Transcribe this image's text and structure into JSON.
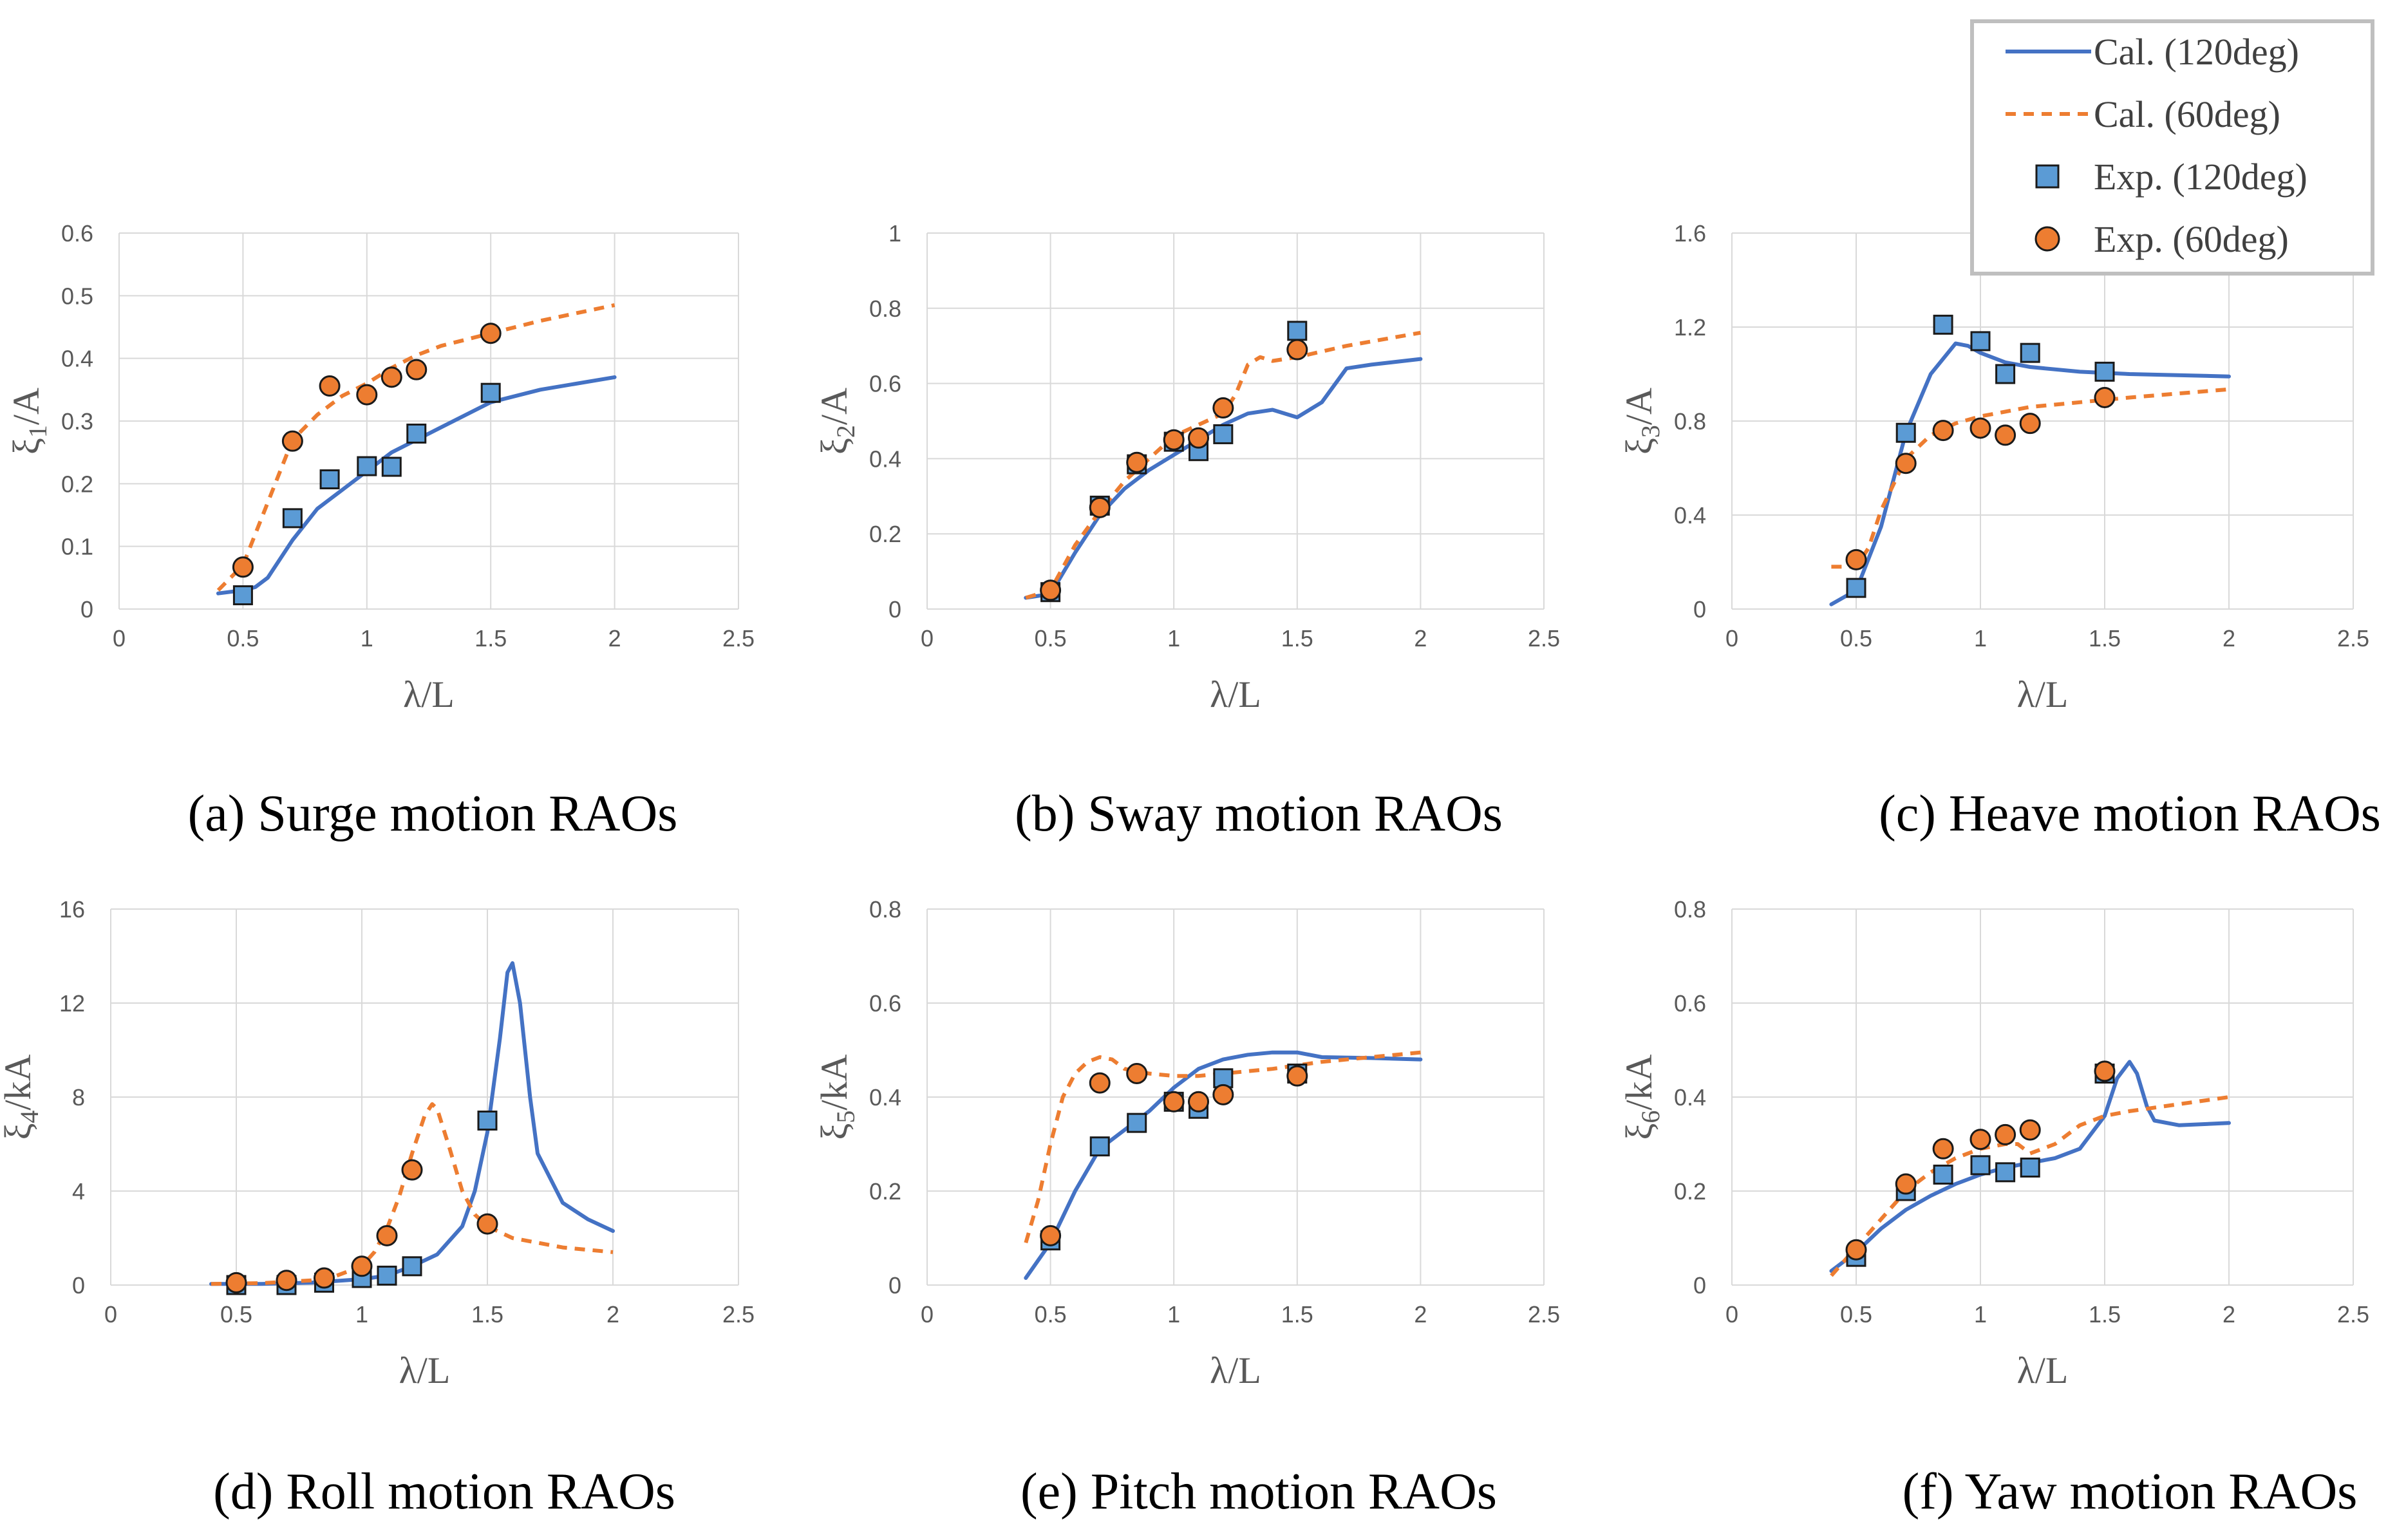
{
  "colors": {
    "cal_120": "#4472C4",
    "cal_60": "#ED7D31",
    "exp_120_fill": "#5B9BD5",
    "exp_60_fill": "#ED7D31",
    "grid": "#D9D9D9",
    "tick_text": "#595959"
  },
  "legend": {
    "entries": [
      {
        "label": "Cal. (120deg)",
        "kind": "solid-line",
        "color": "#4472C4"
      },
      {
        "label": "Cal. (60deg)",
        "kind": "dashed-line",
        "color": "#ED7D31"
      },
      {
        "label": "Exp. (120deg)",
        "kind": "square-marker",
        "color": "#5B9BD5"
      },
      {
        "label": "Exp. (60deg)",
        "kind": "circle-marker",
        "color": "#ED7D31"
      }
    ]
  },
  "chart_data": [
    {
      "type": "line",
      "caption": "(a) Surge motion RAOs",
      "xlabel": "λ/L",
      "ylabel_main": "ξ",
      "ylabel_sub": "1",
      "ylabel_tail": "/A",
      "xlim": [
        0,
        2.5
      ],
      "ylim": [
        0,
        0.6
      ],
      "xticks": [
        0,
        0.5,
        1,
        1.5,
        2,
        2.5
      ],
      "xtick_labels": [
        "0",
        "0.5",
        "1",
        "1.5",
        "2",
        "2.5"
      ],
      "yticks": [
        0,
        0.1,
        0.2,
        0.3,
        0.4,
        0.5,
        0.6
      ],
      "ytick_labels": [
        "0",
        "0.1",
        "0.2",
        "0.3",
        "0.4",
        "0.5",
        "0.6"
      ],
      "series": [
        {
          "name": "Cal. (120deg)",
          "style": "solid",
          "x": [
            0.4,
            0.5,
            0.55,
            0.6,
            0.7,
            0.8,
            0.9,
            1.0,
            1.1,
            1.2,
            1.3,
            1.5,
            1.7,
            2.0
          ],
          "y": [
            0.025,
            0.03,
            0.035,
            0.05,
            0.11,
            0.16,
            0.19,
            0.22,
            0.25,
            0.27,
            0.29,
            0.33,
            0.35,
            0.37
          ]
        },
        {
          "name": "Cal. (60deg)",
          "style": "dashed",
          "x": [
            0.4,
            0.5,
            0.6,
            0.7,
            0.8,
            0.9,
            1.0,
            1.1,
            1.2,
            1.3,
            1.4,
            1.5,
            1.7,
            2.0
          ],
          "y": [
            0.03,
            0.07,
            0.17,
            0.27,
            0.31,
            0.34,
            0.36,
            0.385,
            0.405,
            0.42,
            0.43,
            0.44,
            0.46,
            0.485
          ]
        },
        {
          "name": "Exp. (120deg)",
          "style": "square",
          "x": [
            0.5,
            0.7,
            0.85,
            1.0,
            1.1,
            1.2,
            1.5
          ],
          "y": [
            0.022,
            0.145,
            0.207,
            0.228,
            0.227,
            0.28,
            0.345
          ]
        },
        {
          "name": "Exp. (60deg)",
          "style": "circle",
          "x": [
            0.5,
            0.7,
            0.85,
            1.0,
            1.1,
            1.2,
            1.5
          ],
          "y": [
            0.067,
            0.268,
            0.356,
            0.342,
            0.37,
            0.382,
            0.44
          ]
        }
      ]
    },
    {
      "type": "line",
      "caption": "(b) Sway motion RAOs",
      "xlabel": "λ/L",
      "ylabel_main": "ξ",
      "ylabel_sub": "2",
      "ylabel_tail": "/A",
      "xlim": [
        0,
        2.5
      ],
      "ylim": [
        0,
        1
      ],
      "xticks": [
        0,
        0.5,
        1,
        1.5,
        2,
        2.5
      ],
      "xtick_labels": [
        "0",
        "0.5",
        "1",
        "1.5",
        "2",
        "2.5"
      ],
      "yticks": [
        0,
        0.2,
        0.4,
        0.6,
        0.8,
        1
      ],
      "ytick_labels": [
        "0",
        "0.2",
        "0.4",
        "0.6",
        "0.8",
        "1"
      ],
      "series": [
        {
          "name": "Cal. (120deg)",
          "style": "solid",
          "x": [
            0.4,
            0.5,
            0.6,
            0.7,
            0.8,
            0.9,
            1.0,
            1.1,
            1.2,
            1.3,
            1.4,
            1.5,
            1.6,
            1.7,
            1.8,
            2.0
          ],
          "y": [
            0.03,
            0.04,
            0.15,
            0.25,
            0.32,
            0.37,
            0.41,
            0.45,
            0.49,
            0.52,
            0.53,
            0.51,
            0.55,
            0.64,
            0.65,
            0.665
          ]
        },
        {
          "name": "Cal. (60deg)",
          "style": "dashed",
          "x": [
            0.4,
            0.5,
            0.6,
            0.7,
            0.8,
            0.9,
            1.0,
            1.1,
            1.2,
            1.25,
            1.3,
            1.35,
            1.4,
            1.5,
            1.7,
            2.0
          ],
          "y": [
            0.03,
            0.05,
            0.17,
            0.26,
            0.34,
            0.4,
            0.46,
            0.49,
            0.52,
            0.57,
            0.65,
            0.67,
            0.66,
            0.67,
            0.7,
            0.735
          ]
        },
        {
          "name": "Exp. (120deg)",
          "style": "square",
          "x": [
            0.5,
            0.7,
            0.85,
            1.0,
            1.1,
            1.2,
            1.5
          ],
          "y": [
            0.045,
            0.275,
            0.385,
            0.445,
            0.42,
            0.465,
            0.74
          ]
        },
        {
          "name": "Exp. (60deg)",
          "style": "circle",
          "x": [
            0.5,
            0.7,
            0.85,
            1.0,
            1.1,
            1.2,
            1.5
          ],
          "y": [
            0.05,
            0.27,
            0.39,
            0.45,
            0.455,
            0.535,
            0.69
          ]
        }
      ]
    },
    {
      "type": "line",
      "caption": "(c) Heave motion RAOs",
      "xlabel": "λ/L",
      "ylabel_main": "ξ",
      "ylabel_sub": "3",
      "ylabel_tail": "/A",
      "xlim": [
        0,
        2.5
      ],
      "ylim": [
        0,
        1.6
      ],
      "xticks": [
        0,
        0.5,
        1,
        1.5,
        2,
        2.5
      ],
      "xtick_labels": [
        "0",
        "0.5",
        "1",
        "1.5",
        "2",
        "2.5"
      ],
      "yticks": [
        0,
        0.4,
        0.8,
        1.2,
        1.6
      ],
      "ytick_labels": [
        "0",
        "0.4",
        "0.8",
        "1.2",
        "1.6"
      ],
      "series": [
        {
          "name": "Cal. (120deg)",
          "style": "solid",
          "x": [
            0.4,
            0.5,
            0.6,
            0.7,
            0.8,
            0.9,
            0.95,
            1.0,
            1.1,
            1.2,
            1.4,
            1.6,
            2.0
          ],
          "y": [
            0.02,
            0.08,
            0.35,
            0.75,
            1.0,
            1.13,
            1.12,
            1.09,
            1.05,
            1.03,
            1.01,
            1.0,
            0.99
          ]
        },
        {
          "name": "Cal. (60deg)",
          "style": "dashed",
          "x": [
            0.4,
            0.5,
            0.55,
            0.6,
            0.7,
            0.8,
            0.9,
            1.0,
            1.1,
            1.2,
            1.4,
            1.6,
            2.0
          ],
          "y": [
            0.18,
            0.18,
            0.26,
            0.42,
            0.64,
            0.74,
            0.79,
            0.82,
            0.84,
            0.86,
            0.88,
            0.9,
            0.935
          ]
        },
        {
          "name": "Exp. (120deg)",
          "style": "square",
          "x": [
            0.5,
            0.7,
            0.85,
            1.0,
            1.1,
            1.2,
            1.5
          ],
          "y": [
            0.09,
            0.75,
            1.21,
            1.14,
            1.0,
            1.09,
            1.01
          ]
        },
        {
          "name": "Exp. (60deg)",
          "style": "circle",
          "x": [
            0.5,
            0.7,
            0.85,
            1.0,
            1.1,
            1.2,
            1.5
          ],
          "y": [
            0.21,
            0.62,
            0.76,
            0.77,
            0.74,
            0.79,
            0.9
          ]
        }
      ]
    },
    {
      "type": "line",
      "caption": "(d) Roll motion RAOs",
      "xlabel": "λ/L",
      "ylabel_main": "ξ",
      "ylabel_sub": "4",
      "ylabel_tail": "/kA",
      "xlim": [
        0,
        2.5
      ],
      "ylim": [
        0,
        16
      ],
      "xticks": [
        0,
        0.5,
        1,
        1.5,
        2,
        2.5
      ],
      "xtick_labels": [
        "0",
        "0.5",
        "1",
        "1.5",
        "2",
        "2.5"
      ],
      "yticks": [
        0,
        4,
        8,
        12,
        16
      ],
      "ytick_labels": [
        "0",
        "4",
        "8",
        "12",
        "16"
      ],
      "series": [
        {
          "name": "Cal. (120deg)",
          "style": "solid",
          "x": [
            0.4,
            0.6,
            0.8,
            1.0,
            1.1,
            1.2,
            1.3,
            1.4,
            1.45,
            1.5,
            1.55,
            1.58,
            1.6,
            1.63,
            1.67,
            1.7,
            1.8,
            1.9,
            2.0
          ],
          "y": [
            0.05,
            0.05,
            0.1,
            0.25,
            0.4,
            0.8,
            1.3,
            2.5,
            4.0,
            6.5,
            10.5,
            13.3,
            13.7,
            12.0,
            8.0,
            5.6,
            3.5,
            2.8,
            2.3
          ]
        },
        {
          "name": "Cal. (60deg)",
          "style": "dashed",
          "x": [
            0.4,
            0.6,
            0.8,
            0.9,
            1.0,
            1.05,
            1.1,
            1.15,
            1.2,
            1.25,
            1.28,
            1.3,
            1.35,
            1.4,
            1.45,
            1.5,
            1.6,
            1.8,
            2.0
          ],
          "y": [
            0.05,
            0.08,
            0.2,
            0.4,
            0.8,
            1.4,
            2.4,
            3.8,
            5.6,
            7.2,
            7.7,
            7.5,
            5.8,
            4.0,
            3.0,
            2.5,
            2.0,
            1.6,
            1.4
          ]
        },
        {
          "name": "Exp. (120deg)",
          "style": "square",
          "x": [
            0.5,
            0.7,
            0.85,
            1.0,
            1.1,
            1.2,
            1.5
          ],
          "y": [
            0.0,
            0.0,
            0.1,
            0.3,
            0.4,
            0.8,
            7.0
          ]
        },
        {
          "name": "Exp. (60deg)",
          "style": "circle",
          "x": [
            0.5,
            0.7,
            0.85,
            1.0,
            1.1,
            1.2,
            1.5
          ],
          "y": [
            0.1,
            0.2,
            0.3,
            0.8,
            2.1,
            4.9,
            2.6
          ]
        }
      ]
    },
    {
      "type": "line",
      "caption": "(e) Pitch motion RAOs",
      "xlabel": "λ/L",
      "ylabel_main": "ξ",
      "ylabel_sub": "5",
      "ylabel_tail": "/kA",
      "xlim": [
        0,
        2.5
      ],
      "ylim": [
        0,
        0.8
      ],
      "xticks": [
        0,
        0.5,
        1,
        1.5,
        2,
        2.5
      ],
      "xtick_labels": [
        "0",
        "0.5",
        "1",
        "1.5",
        "2",
        "2.5"
      ],
      "yticks": [
        0,
        0.2,
        0.4,
        0.6,
        0.8
      ],
      "ytick_labels": [
        "0",
        "0.2",
        "0.4",
        "0.6",
        "0.8"
      ],
      "series": [
        {
          "name": "Cal. (120deg)",
          "style": "solid",
          "x": [
            0.4,
            0.5,
            0.6,
            0.7,
            0.8,
            0.9,
            1.0,
            1.1,
            1.2,
            1.3,
            1.4,
            1.5,
            1.6,
            1.8,
            2.0
          ],
          "y": [
            0.015,
            0.09,
            0.2,
            0.29,
            0.33,
            0.37,
            0.42,
            0.46,
            0.48,
            0.49,
            0.495,
            0.495,
            0.485,
            0.483,
            0.48
          ]
        },
        {
          "name": "Cal. (60deg)",
          "style": "dashed",
          "x": [
            0.4,
            0.45,
            0.5,
            0.55,
            0.6,
            0.65,
            0.7,
            0.75,
            0.8,
            0.9,
            1.0,
            1.1,
            1.2,
            1.4,
            1.6,
            1.8,
            2.0
          ],
          "y": [
            0.09,
            0.18,
            0.3,
            0.4,
            0.45,
            0.475,
            0.485,
            0.48,
            0.46,
            0.45,
            0.445,
            0.445,
            0.45,
            0.46,
            0.475,
            0.485,
            0.495
          ]
        },
        {
          "name": "Exp. (120deg)",
          "style": "square",
          "x": [
            0.5,
            0.7,
            0.85,
            1.0,
            1.1,
            1.2,
            1.5
          ],
          "y": [
            0.095,
            0.295,
            0.345,
            0.39,
            0.375,
            0.44,
            0.45
          ]
        },
        {
          "name": "Exp. (60deg)",
          "style": "circle",
          "x": [
            0.5,
            0.7,
            0.85,
            1.0,
            1.1,
            1.2,
            1.5
          ],
          "y": [
            0.105,
            0.43,
            0.45,
            0.39,
            0.39,
            0.405,
            0.445
          ]
        }
      ]
    },
    {
      "type": "line",
      "caption": "(f) Yaw motion RAOs",
      "xlabel": "λ/L",
      "ylabel_main": "ξ",
      "ylabel_sub": "6",
      "ylabel_tail": "/kA",
      "xlim": [
        0,
        2.5
      ],
      "ylim": [
        0,
        0.8
      ],
      "xticks": [
        0,
        0.5,
        1,
        1.5,
        2,
        2.5
      ],
      "xtick_labels": [
        "0",
        "0.5",
        "1",
        "1.5",
        "2",
        "2.5"
      ],
      "yticks": [
        0,
        0.2,
        0.4,
        0.6,
        0.8
      ],
      "ytick_labels": [
        "0",
        "0.2",
        "0.4",
        "0.6",
        "0.8"
      ],
      "series": [
        {
          "name": "Cal. (120deg)",
          "style": "solid",
          "x": [
            0.4,
            0.5,
            0.6,
            0.7,
            0.8,
            0.9,
            1.0,
            1.1,
            1.2,
            1.3,
            1.4,
            1.5,
            1.55,
            1.6,
            1.63,
            1.67,
            1.7,
            1.8,
            2.0
          ],
          "y": [
            0.03,
            0.07,
            0.12,
            0.16,
            0.19,
            0.215,
            0.235,
            0.25,
            0.26,
            0.27,
            0.29,
            0.36,
            0.44,
            0.475,
            0.45,
            0.38,
            0.35,
            0.34,
            0.345
          ]
        },
        {
          "name": "Cal. (60deg)",
          "style": "dashed",
          "x": [
            0.4,
            0.5,
            0.6,
            0.7,
            0.8,
            0.9,
            1.0,
            1.1,
            1.15,
            1.2,
            1.3,
            1.4,
            1.5,
            1.6,
            1.8,
            2.0
          ],
          "y": [
            0.02,
            0.08,
            0.14,
            0.2,
            0.24,
            0.27,
            0.29,
            0.3,
            0.3,
            0.28,
            0.3,
            0.34,
            0.36,
            0.37,
            0.385,
            0.4
          ]
        },
        {
          "name": "Exp. (120deg)",
          "style": "square",
          "x": [
            0.5,
            0.7,
            0.85,
            1.0,
            1.1,
            1.2,
            1.5
          ],
          "y": [
            0.06,
            0.2,
            0.235,
            0.255,
            0.24,
            0.25,
            0.45
          ]
        },
        {
          "name": "Exp. (60deg)",
          "style": "circle",
          "x": [
            0.5,
            0.7,
            0.85,
            1.0,
            1.1,
            1.2,
            1.5
          ],
          "y": [
            0.075,
            0.215,
            0.29,
            0.31,
            0.32,
            0.33,
            0.455
          ]
        }
      ]
    }
  ]
}
